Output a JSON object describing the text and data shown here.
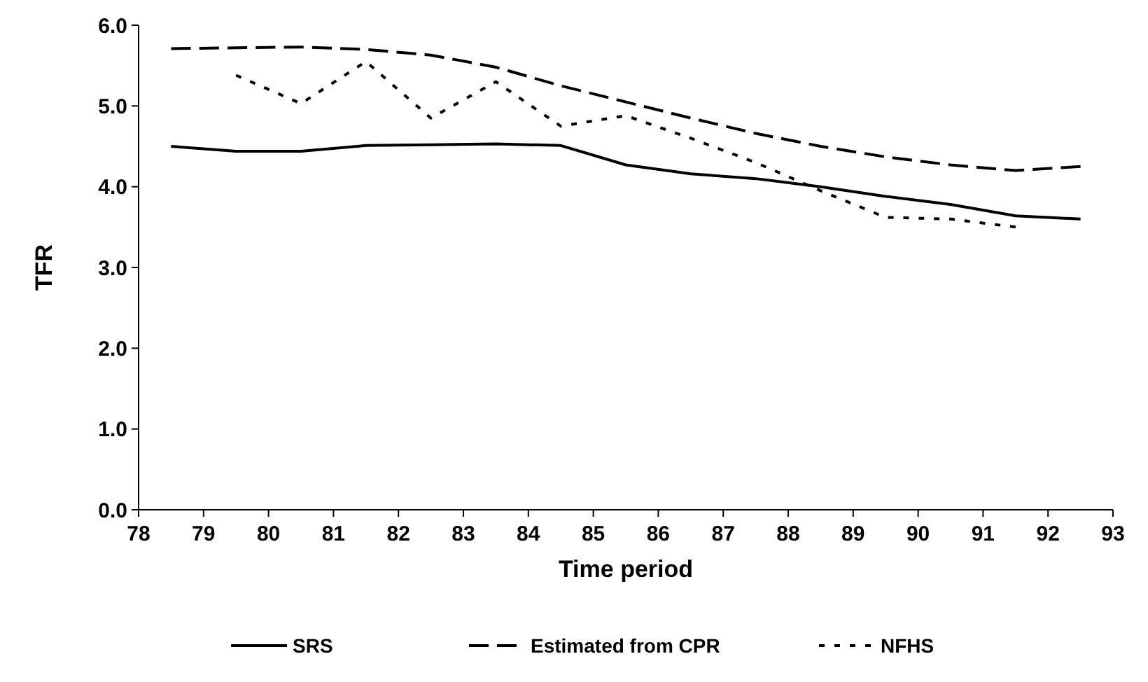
{
  "chart_data": {
    "type": "line",
    "xlabel": "Time period",
    "ylabel": "TFR",
    "x": [
      78.5,
      79.5,
      80.5,
      81.5,
      82.5,
      83.5,
      84.5,
      85.5,
      86.5,
      87.5,
      88.5,
      89.5,
      90.5,
      91.5,
      92.5
    ],
    "xlim": [
      78,
      93
    ],
    "xticks": [
      78,
      79,
      80,
      81,
      82,
      83,
      84,
      85,
      86,
      87,
      88,
      89,
      90,
      91,
      92,
      93
    ],
    "ylim": [
      0,
      6
    ],
    "yticks": [
      {
        "value": 0,
        "label": "0.0"
      },
      {
        "value": 1,
        "label": "1.0"
      },
      {
        "value": 2,
        "label": "2.0"
      },
      {
        "value": 3,
        "label": "3.0"
      },
      {
        "value": 4,
        "label": "4.0"
      },
      {
        "value": 5,
        "label": "5.0"
      },
      {
        "value": 6,
        "label": "6.0"
      }
    ],
    "series": [
      {
        "name": "SRS",
        "color": "#000000",
        "line_style": "solid",
        "values": [
          4.5,
          4.44,
          4.44,
          4.51,
          4.52,
          4.53,
          4.51,
          4.27,
          4.16,
          4.1,
          4.0,
          3.88,
          3.78,
          3.64,
          3.6
        ]
      },
      {
        "name": "Estimated from CPR",
        "color": "#000000",
        "line_style": "dashed",
        "values": [
          5.71,
          5.72,
          5.73,
          5.7,
          5.63,
          5.48,
          5.25,
          5.05,
          4.85,
          4.66,
          4.5,
          4.37,
          4.27,
          4.2,
          4.25
        ]
      },
      {
        "name": "NFHS",
        "color": "#000000",
        "line_style": "dotted",
        "values": [
          null,
          5.38,
          5.03,
          5.55,
          4.85,
          5.3,
          4.75,
          4.88,
          4.6,
          4.3,
          3.95,
          3.62,
          3.6,
          3.5,
          null
        ]
      }
    ],
    "grid": false,
    "legend": "bottom",
    "marker": "none"
  }
}
